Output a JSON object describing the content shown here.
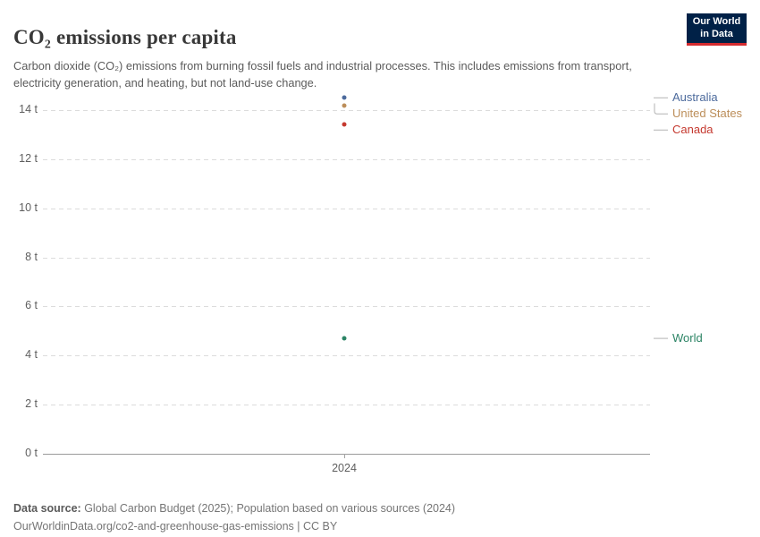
{
  "header": {
    "title": "CO₂ emissions per capita",
    "subtitle": "Carbon dioxide (CO₂) emissions from burning fossil fuels and industrial processes. This includes emissions from transport, electricity generation, and heating, but not land-use change.",
    "logo": {
      "line1": "Our World",
      "line2": "in Data",
      "bg_color": "#002147",
      "accent_color": "#d42b2f"
    }
  },
  "chart_data": {
    "type": "scatter",
    "x": [
      2024
    ],
    "x_tick_label": "2024",
    "series": [
      {
        "name": "Australia",
        "values": [
          14.5
        ],
        "color": "#4C6A9C"
      },
      {
        "name": "United States",
        "values": [
          14.2
        ],
        "color": "#BC8E5A"
      },
      {
        "name": "Canada",
        "values": [
          13.4
        ],
        "color": "#C5392F"
      },
      {
        "name": "World",
        "values": [
          4.7
        ],
        "color": "#2C8465"
      }
    ],
    "yticks": [
      {
        "value": 0,
        "label": "0 t"
      },
      {
        "value": 2,
        "label": "2 t"
      },
      {
        "value": 4,
        "label": "4 t"
      },
      {
        "value": 6,
        "label": "6 t"
      },
      {
        "value": 8,
        "label": "8 t"
      },
      {
        "value": 10,
        "label": "10 t"
      },
      {
        "value": 12,
        "label": "12 t"
      },
      {
        "value": 14,
        "label": "14 t"
      }
    ],
    "ylim": [
      0,
      14.6
    ],
    "unit": "t",
    "grid": "horizontal-dashed",
    "legend_position": "right"
  },
  "footer": {
    "source_label": "Data source:",
    "source_text": " Global Carbon Budget (2025); Population based on various sources (2024)",
    "url_line": "OurWorldinData.org/co2-and-greenhouse-gas-emissions | CC BY"
  }
}
